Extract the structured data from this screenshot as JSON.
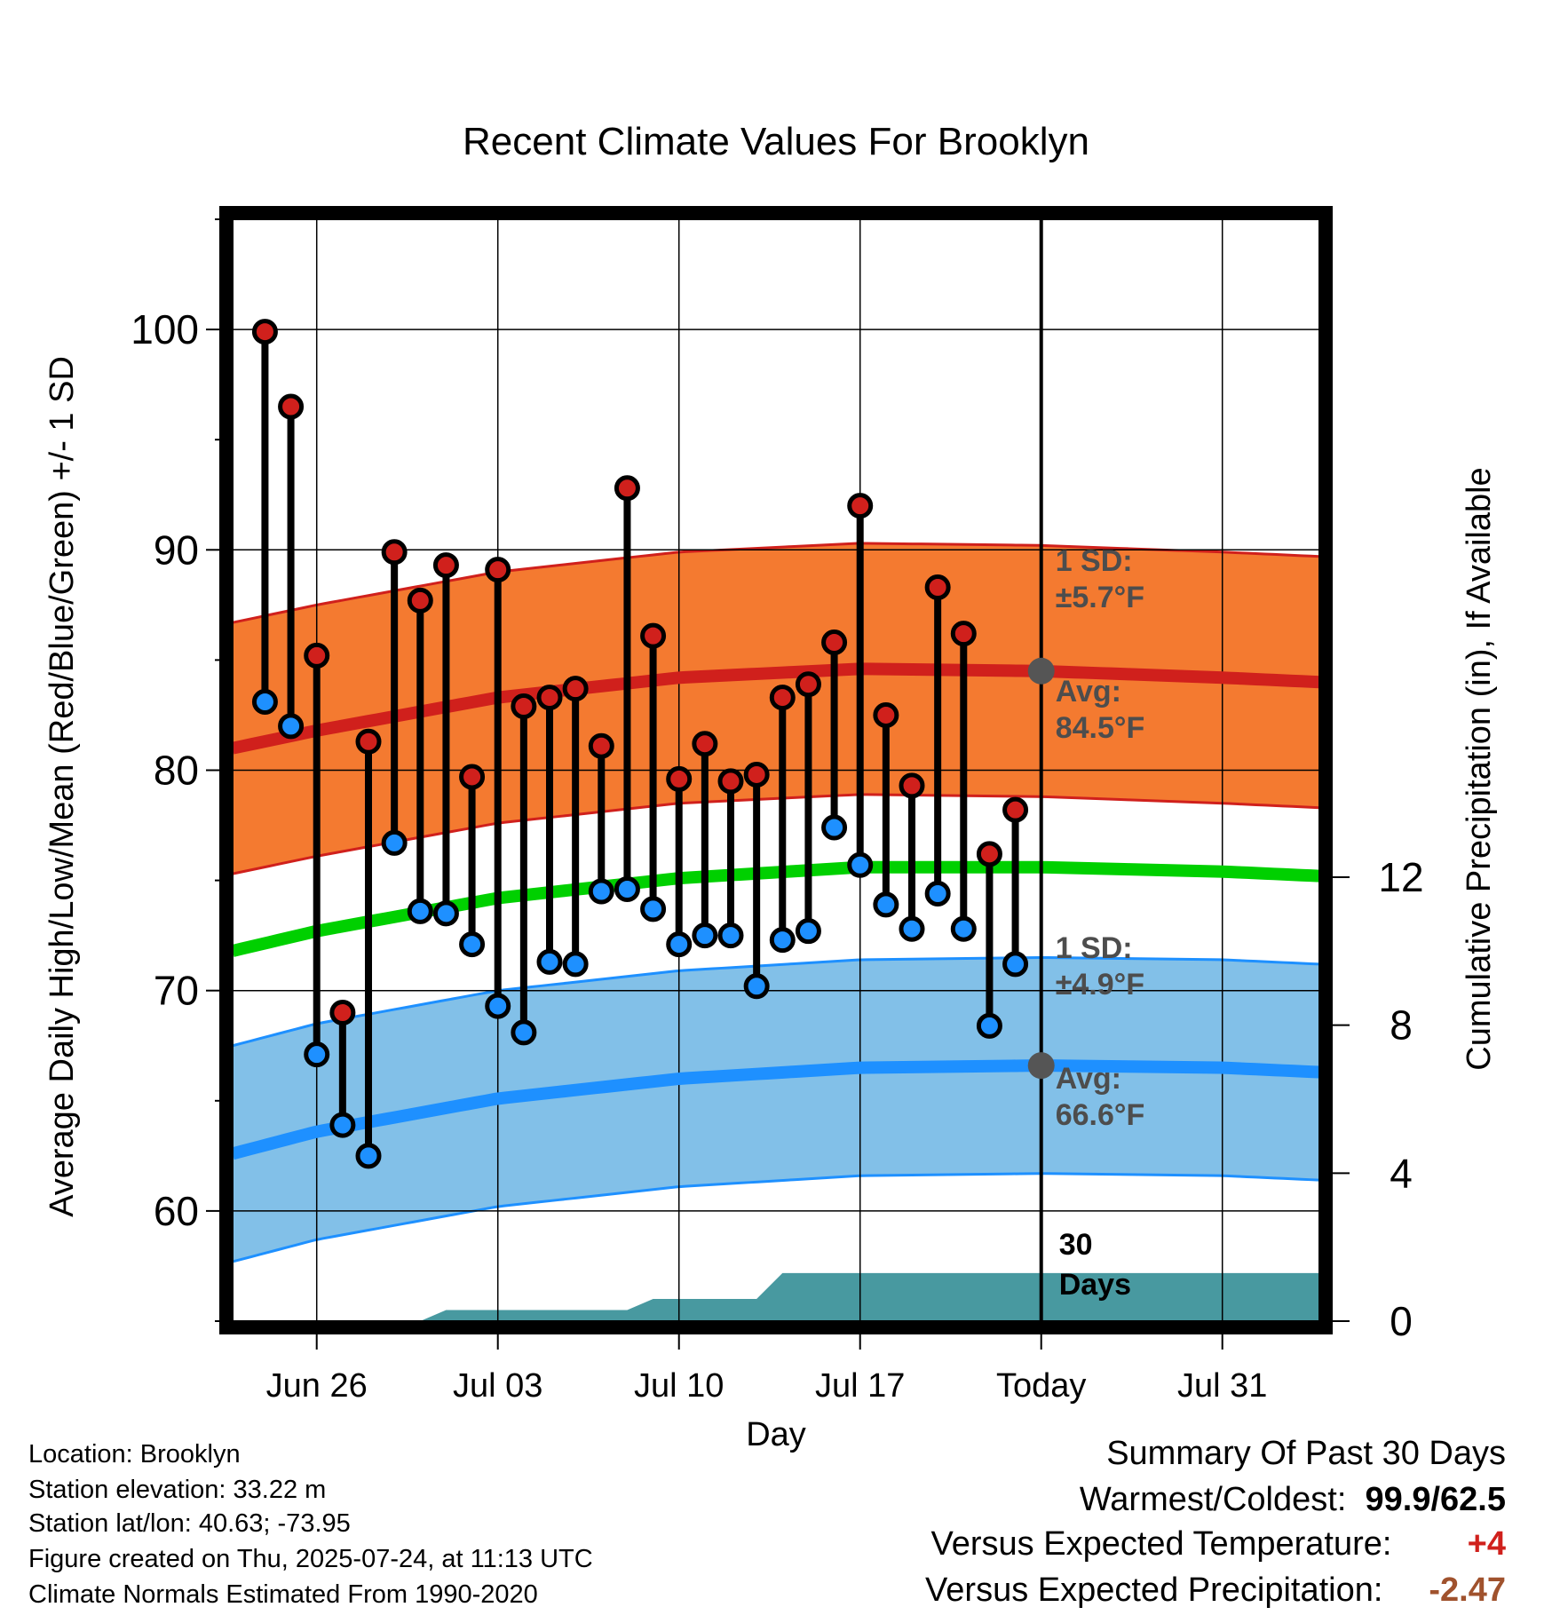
{
  "chart_data": {
    "type": "line",
    "title": "Recent Climate Values For Brooklyn",
    "xlabel": "Day",
    "ylabel": "Average Daily High/Low/Mean (Red/Blue/Green) +/- 1 SD",
    "y2label": "Cumulative Precipitation (in), If Available",
    "ylim": [
      55,
      105
    ],
    "y2lim": [
      0,
      24
    ],
    "x_ticks": [
      "Jun 26",
      "Jul 03",
      "Jul 10",
      "Jul 17",
      "Today",
      "Jul 31"
    ],
    "x_tick_days": [
      26,
      33,
      40,
      47,
      54,
      61
    ],
    "y_ticks": [
      60,
      70,
      80,
      90,
      100
    ],
    "y2_ticks": [
      0,
      4,
      8,
      12
    ],
    "xlim": [
      22.75,
      64.75
    ],
    "grid": true,
    "days": [
      24,
      25,
      26,
      27,
      28,
      29,
      30,
      31,
      32,
      33,
      34,
      35,
      36,
      37,
      38,
      39,
      40,
      41,
      42,
      43,
      44,
      45,
      46,
      47,
      48,
      49,
      50,
      51,
      52,
      53
    ],
    "series": [
      {
        "name": "High",
        "color": "#d0201c",
        "values": [
          99.9,
          96.5,
          85.2,
          69.0,
          81.3,
          89.9,
          87.7,
          89.3,
          79.7,
          89.1,
          82.9,
          83.3,
          83.7,
          81.1,
          92.8,
          86.1,
          79.6,
          81.2,
          79.5,
          79.8,
          83.3,
          83.9,
          85.8,
          92.0,
          82.5,
          79.3,
          88.3,
          86.2,
          76.2,
          78.2
        ]
      },
      {
        "name": "Low",
        "color": "#1e90ff",
        "values": [
          83.1,
          82.0,
          67.1,
          63.9,
          62.5,
          76.7,
          73.6,
          73.5,
          72.1,
          69.3,
          68.1,
          71.3,
          71.2,
          74.5,
          74.6,
          73.7,
          72.1,
          72.5,
          72.5,
          70.2,
          72.3,
          72.7,
          77.4,
          75.7,
          73.9,
          72.8,
          74.4,
          72.8,
          68.4,
          71.2
        ]
      }
    ],
    "normals": {
      "days": [
        22.75,
        26,
        33,
        40,
        47,
        54,
        61,
        64.75
      ],
      "high_avg": [
        81.0,
        81.8,
        83.3,
        84.2,
        84.6,
        84.5,
        84.2,
        84.0
      ],
      "low_avg": [
        62.6,
        63.6,
        65.1,
        66.0,
        66.5,
        66.6,
        66.5,
        66.3
      ],
      "mean_avg": [
        71.8,
        72.7,
        74.2,
        75.1,
        75.6,
        75.6,
        75.4,
        75.2
      ],
      "high_sd": 5.7,
      "low_sd": 4.9
    },
    "precip": {
      "days": [
        22.75,
        30,
        31,
        38,
        39,
        43,
        44,
        64.75
      ],
      "values": [
        0,
        0,
        0.3,
        0.3,
        0.6,
        0.6,
        1.3,
        1.3
      ]
    },
    "colors": {
      "high_band": "#f47a30",
      "high_line": "#d0201c",
      "low_band": "#82c0e8",
      "low_line": "#1e90ff",
      "mean_line": "#00d000",
      "precip": "#4899a0",
      "marker": "#555555"
    },
    "annotations": {
      "high_sd_label_1": "1 SD:",
      "high_sd_label_2": "±5.7°F",
      "high_avg_label_1": "Avg:",
      "high_avg_label_2": "84.5°F",
      "low_sd_label_1": "1 SD:",
      "low_sd_label_2": "±4.9°F",
      "low_avg_label_1": "Avg:",
      "low_avg_label_2": "66.6°F",
      "days_label_1": "30",
      "days_label_2": "Days"
    }
  },
  "footer": {
    "location": "Location: Brooklyn",
    "elevation": "Station elevation: 33.22 m",
    "latlon": "Station lat/lon: 40.63; -73.95",
    "created": "Figure created on Thu, 2025-07-24, at 11:13 UTC",
    "normals": "Climate Normals Estimated From 1990-2020"
  },
  "summary": {
    "title": "Summary Of Past 30 Days",
    "warm_cold_label": "Warmest/Coldest:",
    "warm_cold_value": "99.9/62.5",
    "temp_label": "Versus Expected Temperature:",
    "temp_value": "+4",
    "temp_color": "#d0201c",
    "precip_label": "Versus Expected Precipitation:",
    "precip_value": "-2.47",
    "precip_color": "#a0522d"
  }
}
